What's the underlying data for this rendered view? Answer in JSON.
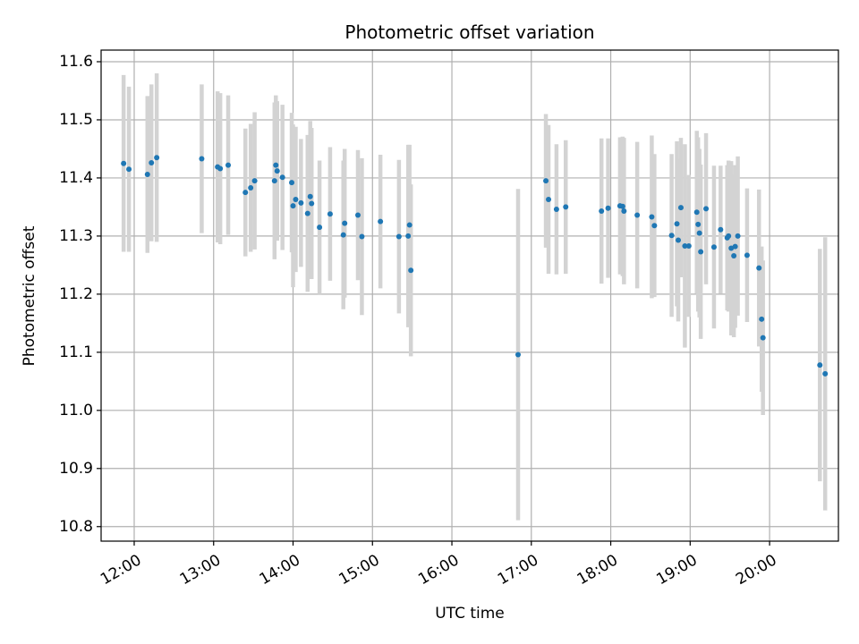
{
  "chart_data": {
    "type": "scatter",
    "title": "Photometric offset variation",
    "xlabel": "UTC time",
    "ylabel": "Photometric offset",
    "x_axis": "time",
    "xlim": [
      "11:35",
      "20:52"
    ],
    "ylim": [
      10.775,
      11.62
    ],
    "x_ticks": [
      "12:00",
      "13:00",
      "14:00",
      "15:00",
      "16:00",
      "17:00",
      "18:00",
      "19:00",
      "20:00"
    ],
    "y_ticks": [
      "10.8",
      "10.9",
      "11.0",
      "11.1",
      "11.2",
      "11.3",
      "11.4",
      "11.5",
      "11.6"
    ],
    "grid": true,
    "legend": "none",
    "colors": {
      "point": "#1f77b4",
      "errorbar": "#d3d3d3",
      "grid": "#b0b0b0",
      "axis": "#000000"
    },
    "series": [
      {
        "x": [
          "11:52",
          "11:56",
          "12:10",
          "12:13",
          "12:17",
          "12:51",
          "13:03",
          "13:05",
          "13:11",
          "13:24",
          "13:28",
          "13:31",
          "13:46",
          "13:47",
          "13:48",
          "13:52",
          "13:59",
          "14:00",
          "14:02",
          "14:06",
          "14:11",
          "14:13",
          "14:14",
          "14:20",
          "14:28",
          "14:38",
          "14:39",
          "14:49",
          "14:52",
          "15:06",
          "15:20",
          "15:27",
          "15:28",
          "15:29",
          "16:50",
          "17:11",
          "17:13",
          "17:19",
          "17:26",
          "17:53",
          "17:58",
          "18:07",
          "18:09",
          "18:10",
          "18:20",
          "18:31",
          "18:33",
          "18:46",
          "18:50",
          "18:51",
          "18:53",
          "18:56",
          "18:59",
          "19:05",
          "19:06",
          "19:07",
          "19:08",
          "19:12",
          "19:18",
          "19:23",
          "19:28",
          "19:29",
          "19:31",
          "19:33",
          "19:34",
          "19:36",
          "19:43",
          "19:52",
          "19:54",
          "19:55",
          "20:38",
          "20:42"
        ],
        "y": [
          11.425,
          11.415,
          11.406,
          11.426,
          11.435,
          11.433,
          11.419,
          11.416,
          11.422,
          11.375,
          11.383,
          11.395,
          11.395,
          11.422,
          11.412,
          11.401,
          11.392,
          11.352,
          11.363,
          11.357,
          11.339,
          11.368,
          11.356,
          11.315,
          11.338,
          11.302,
          11.322,
          11.336,
          11.299,
          11.325,
          11.299,
          11.3,
          11.319,
          11.241,
          11.096,
          11.395,
          11.363,
          11.346,
          11.35,
          11.343,
          11.348,
          11.352,
          11.351,
          11.343,
          11.336,
          11.333,
          11.318,
          11.301,
          11.321,
          11.293,
          11.349,
          11.283,
          11.283,
          11.341,
          11.32,
          11.305,
          11.273,
          11.347,
          11.281,
          11.311,
          11.297,
          11.3,
          11.279,
          11.266,
          11.282,
          11.3,
          11.267,
          11.245,
          11.157,
          11.125,
          11.078,
          11.063
        ],
        "error": [
          0.152,
          0.142,
          0.135,
          0.135,
          0.145,
          0.128,
          0.13,
          0.13,
          0.12,
          0.11,
          0.11,
          0.118,
          0.135,
          0.12,
          0.12,
          0.125,
          0.12,
          0.14,
          0.125,
          0.11,
          0.135,
          0.13,
          0.13,
          0.115,
          0.115,
          0.128,
          0.128,
          0.112,
          0.135,
          0.115,
          0.132,
          0.157,
          0.138,
          0.148,
          0.285,
          0.115,
          0.128,
          0.112,
          0.115,
          0.125,
          0.12,
          0.118,
          0.12,
          0.126,
          0.126,
          0.14,
          0.123,
          0.14,
          0.142,
          0.14,
          0.12,
          0.175,
          0.122,
          0.14,
          0.15,
          0.145,
          0.15,
          0.13,
          0.14,
          0.11,
          0.125,
          0.13,
          0.15,
          0.14,
          0.14,
          0.137,
          0.115,
          0.135,
          0.125,
          0.133,
          0.2,
          0.235
        ]
      }
    ]
  }
}
